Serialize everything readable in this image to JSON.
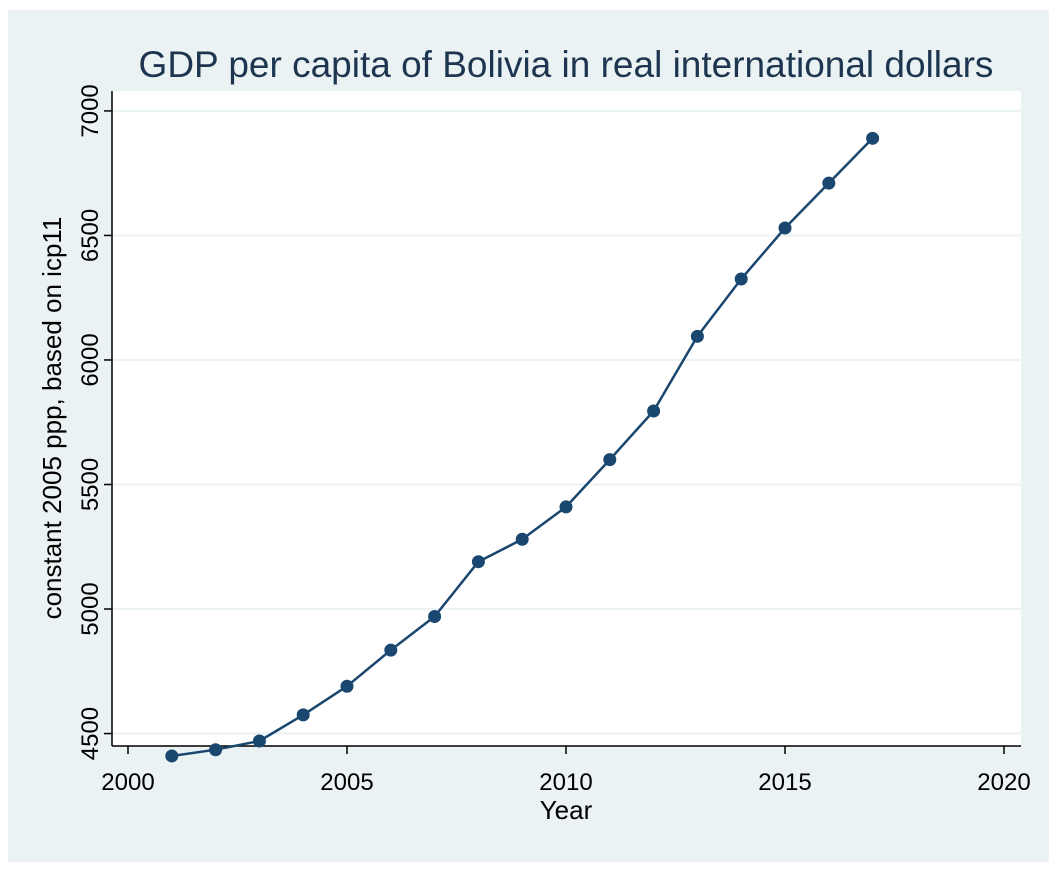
{
  "chart_data": {
    "type": "line",
    "title": "GDP per capita of Bolivia in real international dollars",
    "xlabel": "Year",
    "ylabel": "constant 2005 ppp, based on icp11",
    "xlim": [
      2000,
      2020
    ],
    "ylim": [
      4450,
      7080
    ],
    "xticks": [
      2000,
      2005,
      2010,
      2015,
      2020
    ],
    "yticks": [
      4500,
      5000,
      5500,
      6000,
      6500,
      7000
    ],
    "grid": true,
    "legend": "none",
    "series": [
      {
        "x": [
          2001,
          2002,
          2003,
          2004,
          2005,
          2006,
          2007,
          2008,
          2009,
          2010,
          2011,
          2012,
          2013,
          2014,
          2015,
          2016,
          2017
        ],
        "y": [
          4410,
          4435,
          4470,
          4575,
          4690,
          4835,
          4970,
          5190,
          5280,
          5410,
          5600,
          5795,
          6095,
          6325,
          6530,
          6710,
          6890
        ]
      }
    ],
    "colors": {
      "background": "#eaf2f3",
      "plot_background": "#ffffff",
      "line": "#1a476f",
      "grid": "#eaf2f3",
      "text": "#000000",
      "title": "#1e3550"
    }
  }
}
